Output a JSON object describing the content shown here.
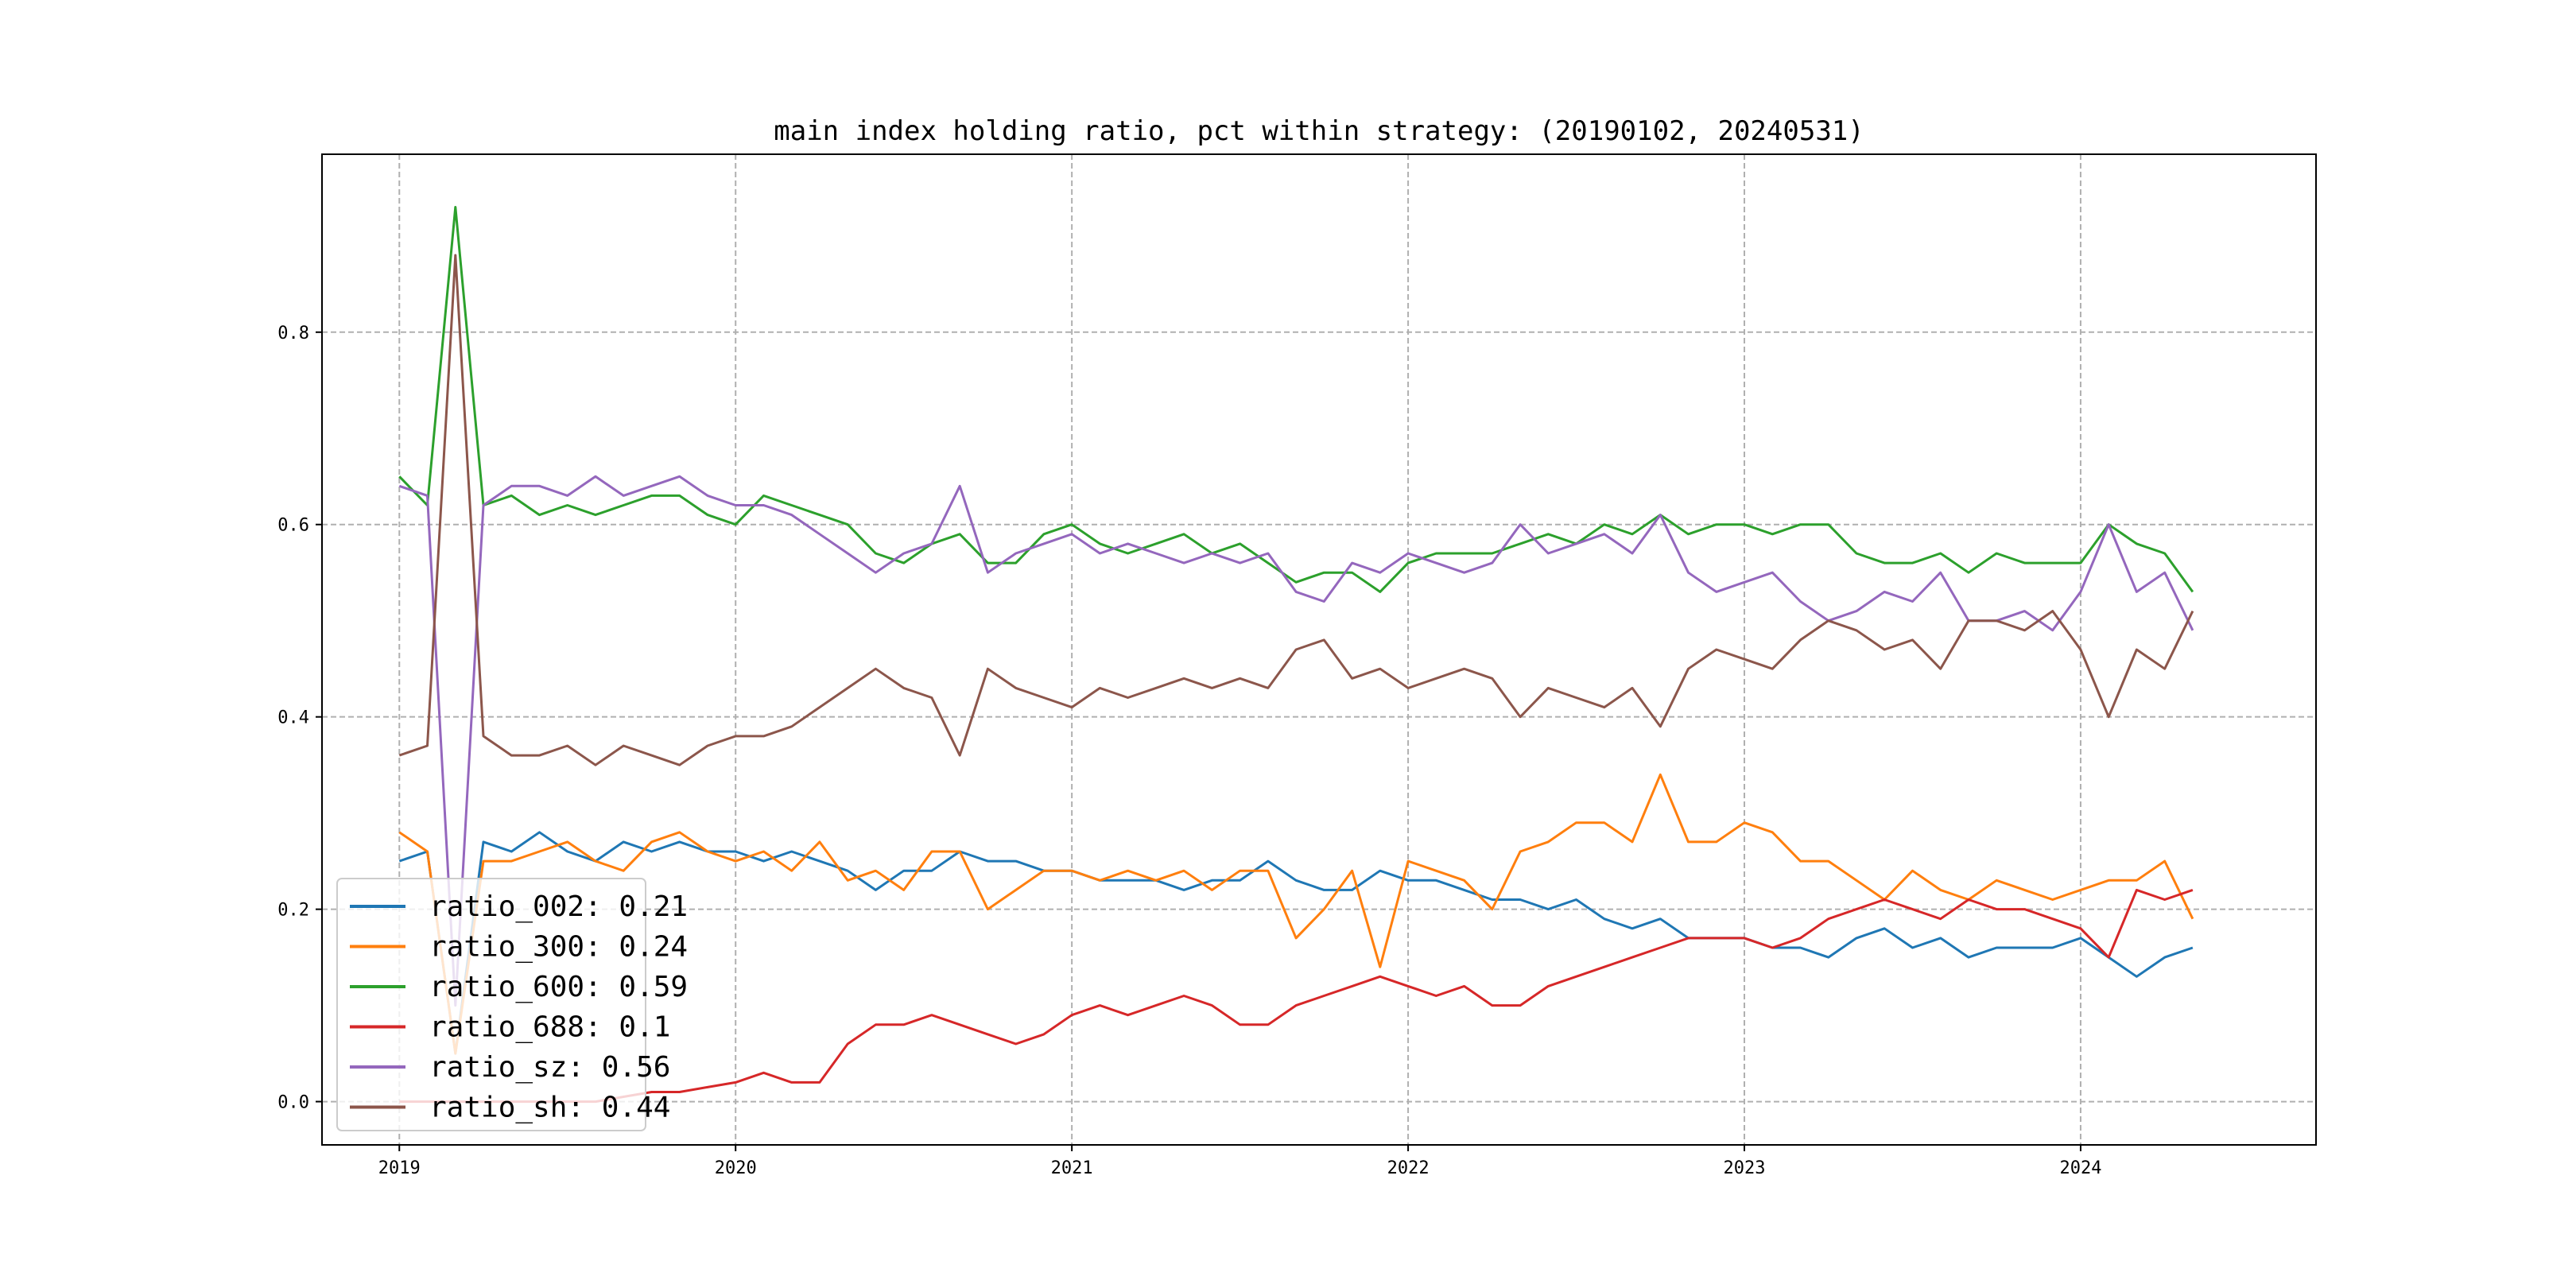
{
  "chart_data": {
    "type": "line",
    "title": "main index holding ratio, pct within strategy: (20190102, 20240531)",
    "xlabel": "",
    "ylabel": "",
    "xlim": [
      2018.77,
      2024.7
    ],
    "ylim": [
      -0.045,
      0.985
    ],
    "grid": true,
    "legend_position": "lower-left",
    "x_ticks": [
      2019,
      2020,
      2021,
      2022,
      2023,
      2024
    ],
    "x_tick_labels": [
      "2019",
      "2020",
      "2021",
      "2022",
      "2023",
      "2024"
    ],
    "y_ticks": [
      0.0,
      0.2,
      0.4,
      0.6,
      0.8
    ],
    "y_tick_labels": [
      "0.0",
      "0.2",
      "0.4",
      "0.6",
      "0.8"
    ],
    "x_start": 2019.0,
    "x_step_months": 1,
    "series": [
      {
        "name": "ratio_002",
        "legend_label": "ratio_002: 0.21",
        "color": "#1f77b4",
        "values": [
          0.25,
          0.26,
          0.05,
          0.27,
          0.26,
          0.28,
          0.26,
          0.25,
          0.27,
          0.26,
          0.27,
          0.26,
          0.26,
          0.25,
          0.26,
          0.25,
          0.24,
          0.22,
          0.24,
          0.24,
          0.26,
          0.25,
          0.25,
          0.24,
          0.24,
          0.23,
          0.23,
          0.23,
          0.22,
          0.23,
          0.23,
          0.25,
          0.23,
          0.22,
          0.22,
          0.24,
          0.23,
          0.23,
          0.22,
          0.21,
          0.21,
          0.2,
          0.21,
          0.19,
          0.18,
          0.19,
          0.17,
          0.17,
          0.17,
          0.16,
          0.16,
          0.15,
          0.17,
          0.18,
          0.16,
          0.17,
          0.15,
          0.16,
          0.16,
          0.16,
          0.17,
          0.15,
          0.13,
          0.15,
          0.16
        ]
      },
      {
        "name": "ratio_300",
        "legend_label": "ratio_300: 0.24",
        "color": "#ff7f0e",
        "values": [
          0.28,
          0.26,
          0.05,
          0.25,
          0.25,
          0.26,
          0.27,
          0.25,
          0.24,
          0.27,
          0.28,
          0.26,
          0.25,
          0.26,
          0.24,
          0.27,
          0.23,
          0.24,
          0.22,
          0.26,
          0.26,
          0.2,
          0.22,
          0.24,
          0.24,
          0.23,
          0.24,
          0.23,
          0.24,
          0.22,
          0.24,
          0.24,
          0.17,
          0.2,
          0.24,
          0.14,
          0.25,
          0.24,
          0.23,
          0.2,
          0.26,
          0.27,
          0.29,
          0.29,
          0.27,
          0.34,
          0.27,
          0.27,
          0.29,
          0.28,
          0.25,
          0.25,
          0.23,
          0.21,
          0.24,
          0.22,
          0.21,
          0.23,
          0.22,
          0.21,
          0.22,
          0.23,
          0.23,
          0.25,
          0.19
        ]
      },
      {
        "name": "ratio_600",
        "legend_label": "ratio_600: 0.59",
        "color": "#2ca02c",
        "values": [
          0.65,
          0.62,
          0.93,
          0.62,
          0.63,
          0.61,
          0.62,
          0.61,
          0.62,
          0.63,
          0.63,
          0.61,
          0.6,
          0.63,
          0.62,
          0.61,
          0.6,
          0.57,
          0.56,
          0.58,
          0.59,
          0.56,
          0.56,
          0.59,
          0.6,
          0.58,
          0.57,
          0.58,
          0.59,
          0.57,
          0.58,
          0.56,
          0.54,
          0.55,
          0.55,
          0.53,
          0.56,
          0.57,
          0.57,
          0.57,
          0.58,
          0.59,
          0.58,
          0.6,
          0.59,
          0.61,
          0.59,
          0.6,
          0.6,
          0.59,
          0.6,
          0.6,
          0.57,
          0.56,
          0.56,
          0.57,
          0.55,
          0.57,
          0.56,
          0.56,
          0.56,
          0.6,
          0.58,
          0.57,
          0.53
        ]
      },
      {
        "name": "ratio_688",
        "legend_label": "ratio_688: 0.1",
        "color": "#d62728",
        "values": [
          0,
          0,
          0,
          0,
          0,
          0,
          0,
          0,
          0.005,
          0.01,
          0.01,
          0.015,
          0.02,
          0.03,
          0.02,
          0.02,
          0.06,
          0.08,
          0.08,
          0.09,
          0.08,
          0.07,
          0.06,
          0.07,
          0.09,
          0.1,
          0.09,
          0.1,
          0.11,
          0.1,
          0.08,
          0.08,
          0.1,
          0.11,
          0.12,
          0.13,
          0.12,
          0.11,
          0.12,
          0.1,
          0.1,
          0.12,
          0.13,
          0.14,
          0.15,
          0.16,
          0.17,
          0.17,
          0.17,
          0.16,
          0.17,
          0.19,
          0.2,
          0.21,
          0.2,
          0.19,
          0.21,
          0.2,
          0.2,
          0.19,
          0.18,
          0.15,
          0.22,
          0.21,
          0.22
        ]
      },
      {
        "name": "ratio_sz",
        "legend_label": "ratio_sz: 0.56",
        "color": "#9467bd",
        "values": [
          0.64,
          0.63,
          0.1,
          0.62,
          0.64,
          0.64,
          0.63,
          0.65,
          0.63,
          0.64,
          0.65,
          0.63,
          0.62,
          0.62,
          0.61,
          0.59,
          0.57,
          0.55,
          0.57,
          0.58,
          0.64,
          0.55,
          0.57,
          0.58,
          0.59,
          0.57,
          0.58,
          0.57,
          0.56,
          0.57,
          0.56,
          0.57,
          0.53,
          0.52,
          0.56,
          0.55,
          0.57,
          0.56,
          0.55,
          0.56,
          0.6,
          0.57,
          0.58,
          0.59,
          0.57,
          0.61,
          0.55,
          0.53,
          0.54,
          0.55,
          0.52,
          0.5,
          0.51,
          0.53,
          0.52,
          0.55,
          0.5,
          0.5,
          0.51,
          0.49,
          0.53,
          0.6,
          0.53,
          0.55,
          0.49
        ]
      },
      {
        "name": "ratio_sh",
        "legend_label": "ratio_sh: 0.44",
        "color": "#8c564b",
        "values": [
          0.36,
          0.37,
          0.88,
          0.38,
          0.36,
          0.36,
          0.37,
          0.35,
          0.37,
          0.36,
          0.35,
          0.37,
          0.38,
          0.38,
          0.39,
          0.41,
          0.43,
          0.45,
          0.43,
          0.42,
          0.36,
          0.45,
          0.43,
          0.42,
          0.41,
          0.43,
          0.42,
          0.43,
          0.44,
          0.43,
          0.44,
          0.43,
          0.47,
          0.48,
          0.44,
          0.45,
          0.43,
          0.44,
          0.45,
          0.44,
          0.4,
          0.43,
          0.42,
          0.41,
          0.43,
          0.39,
          0.45,
          0.47,
          0.46,
          0.45,
          0.48,
          0.5,
          0.49,
          0.47,
          0.48,
          0.45,
          0.5,
          0.5,
          0.49,
          0.51,
          0.47,
          0.4,
          0.47,
          0.45,
          0.51
        ]
      }
    ]
  }
}
